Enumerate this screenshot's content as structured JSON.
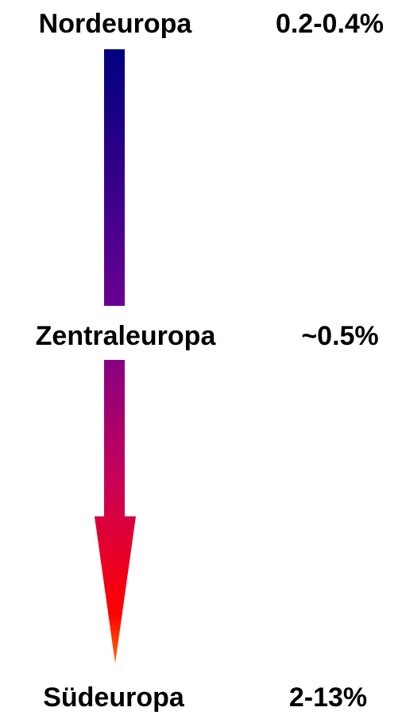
{
  "regions": [
    {
      "name": "Nordeuropa",
      "value": "0.2-0.4%"
    },
    {
      "name": "Zentraleuropa",
      "value": "~0.5%"
    },
    {
      "name": "Südeuropa",
      "value": "2-13%"
    }
  ]
}
